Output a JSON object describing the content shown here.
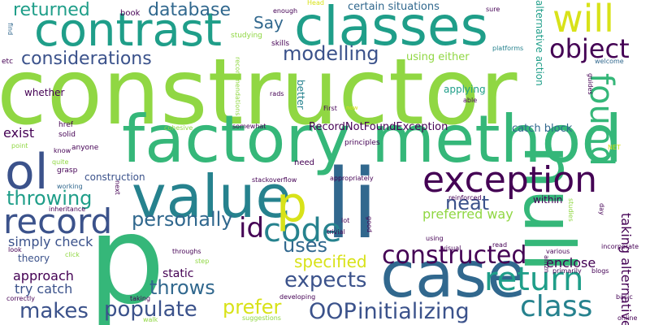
{
  "palette": {
    "background": "#ffffff",
    "dark_purple": "#440154",
    "indigo": "#3b528b",
    "blue": "#31688e",
    "teal_blue": "#26828e",
    "teal": "#1f9e89",
    "green": "#35b779",
    "light_green": "#6ece58",
    "lime": "#90d743",
    "yellow": "#d8e219"
  },
  "words": [
    "constructor",
    "factory method",
    "p",
    "li",
    "case",
    "null",
    "classes",
    "contrast",
    "value",
    "ol",
    "exception",
    "will",
    "record",
    "code",
    "return",
    "found",
    "class",
    "object",
    "p",
    "id",
    "constructed",
    "initializing",
    "OOP",
    "populate",
    "expects",
    "makes",
    "throws",
    "prefer",
    "uses",
    "personally",
    "neat",
    "throwing",
    "modelling",
    "considerations",
    "database",
    "returned",
    "Say",
    "specified",
    "approach",
    "try catch",
    "exist",
    "simply check",
    "preferred way",
    "enclose",
    "taking alternative",
    "static",
    "certain situations",
    "using either",
    "catch block",
    "RecordNotFoundException",
    "construction",
    "theory",
    "applying",
    "alternative action",
    "better",
    "within",
    "whether",
    "need",
    "book",
    "enough",
    "Head",
    "sure",
    "studying",
    "skills",
    "platforms",
    "etc",
    "find",
    "welcome",
    "rads",
    "First",
    "now",
    "able",
    "recommendations",
    "guides",
    "incorporate",
    "href",
    "solid",
    "know",
    "anyone",
    "point",
    "quite",
    "grasp",
    "working",
    "inheritance",
    "look",
    "click",
    "correctly",
    "cohesive",
    "somewhat",
    "principles",
    "NET",
    "stackoverflow",
    "appropriately",
    "next",
    "reinforced",
    "lot",
    "good",
    "trivial",
    "using",
    "read",
    "visual",
    "various",
    "primarily",
    "blogs",
    "day",
    "studies",
    "basic",
    "amzn",
    "online",
    "step",
    "throughs",
    "developing",
    "taking",
    "suggestions",
    "walk"
  ]
}
